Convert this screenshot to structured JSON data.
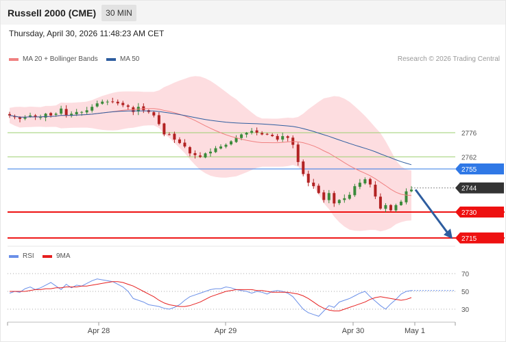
{
  "header": {
    "title": "Russell 2000 (CME)",
    "timeframe": "30 MIN"
  },
  "timestamp": "Thursday, April 30, 2026 11:48:23 AM CET",
  "credit": "Research © 2026 Trading Central",
  "colors": {
    "ma20": "#f08080",
    "ma50": "#2e5d9f",
    "bands": "#fddde0",
    "level_green": "#9bcf6f",
    "level_blue": "#2f78e6",
    "level_red": "#ee1111",
    "current": "#333333",
    "up": "#3a8a3a",
    "down": "#b22222",
    "rsi": "#6a8fe8",
    "rsi_ma": "#e61e1e",
    "arrow": "#2e5d9f"
  },
  "chart_data": [
    {
      "type": "candlestick",
      "title": "Russell 2000 (CME)",
      "timeframe": "30 MIN",
      "legend": [
        "MA 20 + Bollinger Bands",
        "MA 50"
      ],
      "ylim": [
        2712,
        2790
      ],
      "x_ticks": [
        "Apr 28",
        "Apr 29",
        "Apr 30",
        "May 1"
      ],
      "levels": [
        {
          "value": 2776,
          "label": "2776",
          "style": "support-resistance"
        },
        {
          "value": 2762,
          "label": "2762",
          "style": "support-resistance"
        },
        {
          "value": 2755,
          "label": "2755",
          "style": "key-resistance"
        },
        {
          "value": 2744,
          "label": "2744",
          "style": "current-price"
        },
        {
          "value": 2730,
          "label": "2730",
          "style": "target"
        },
        {
          "value": 2715,
          "label": "2715",
          "style": "target"
        }
      ],
      "forecast_arrow": {
        "from": 2743,
        "to": 2716,
        "direction": "down"
      },
      "closes": [
        2786,
        2785,
        2784,
        2785,
        2786,
        2785,
        2785,
        2787,
        2786,
        2787,
        2790,
        2786,
        2787,
        2788,
        2788,
        2789,
        2791,
        2793,
        2794,
        2794,
        2794,
        2793,
        2792,
        2791,
        2788,
        2791,
        2789,
        2788,
        2786,
        2781,
        2775,
        2775,
        2772,
        2770,
        2768,
        2764,
        2763,
        2762,
        2764,
        2765,
        2767,
        2768,
        2769,
        2771,
        2773,
        2775,
        2776,
        2777,
        2776,
        2775,
        2775,
        2774,
        2772,
        2774,
        2773,
        2769,
        2759,
        2752,
        2747,
        2745,
        2741,
        2737,
        2741,
        2735,
        2737,
        2738,
        2740,
        2745,
        2747,
        2749,
        2746,
        2739,
        2732,
        2734,
        2731,
        2734,
        2736,
        2742,
        2743
      ]
    },
    {
      "type": "line",
      "title": "RSI",
      "legend": [
        "RSI",
        "9MA"
      ],
      "ylim": [
        20,
        80
      ],
      "y_ticks": [
        70,
        50,
        30
      ],
      "series": [
        {
          "name": "RSI",
          "values": [
            48,
            50,
            49,
            53,
            55,
            52,
            54,
            57,
            60,
            56,
            52,
            58,
            54,
            57,
            56,
            59,
            62,
            64,
            63,
            62,
            61,
            58,
            55,
            50,
            42,
            40,
            38,
            35,
            34,
            33,
            31,
            30,
            32,
            35,
            40,
            44,
            46,
            48,
            50,
            52,
            53,
            53,
            55,
            54,
            52,
            51,
            50,
            48,
            50,
            49,
            47,
            50,
            51,
            50,
            48,
            44,
            37,
            30,
            26,
            24,
            22,
            28,
            34,
            32,
            38,
            40,
            42,
            45,
            48,
            50,
            44,
            39,
            34,
            30,
            36,
            41,
            47,
            50,
            51
          ]
        },
        {
          "name": "9MA",
          "values": [
            50,
            50,
            50,
            50,
            51,
            52,
            52,
            53,
            53,
            54,
            54,
            55,
            55,
            55,
            56,
            56,
            57,
            58,
            59,
            60,
            61,
            61,
            60,
            58,
            56,
            53,
            50,
            47,
            44,
            40,
            37,
            35,
            34,
            33,
            33,
            34,
            36,
            38,
            41,
            44,
            46,
            48,
            50,
            51,
            52,
            52,
            52,
            52,
            51,
            51,
            50,
            49,
            49,
            49,
            49,
            48,
            47,
            45,
            42,
            38,
            34,
            31,
            29,
            28,
            28,
            30,
            32,
            34,
            36,
            38,
            41,
            43,
            44,
            43,
            42,
            41,
            40,
            41,
            43
          ]
        }
      ]
    }
  ]
}
